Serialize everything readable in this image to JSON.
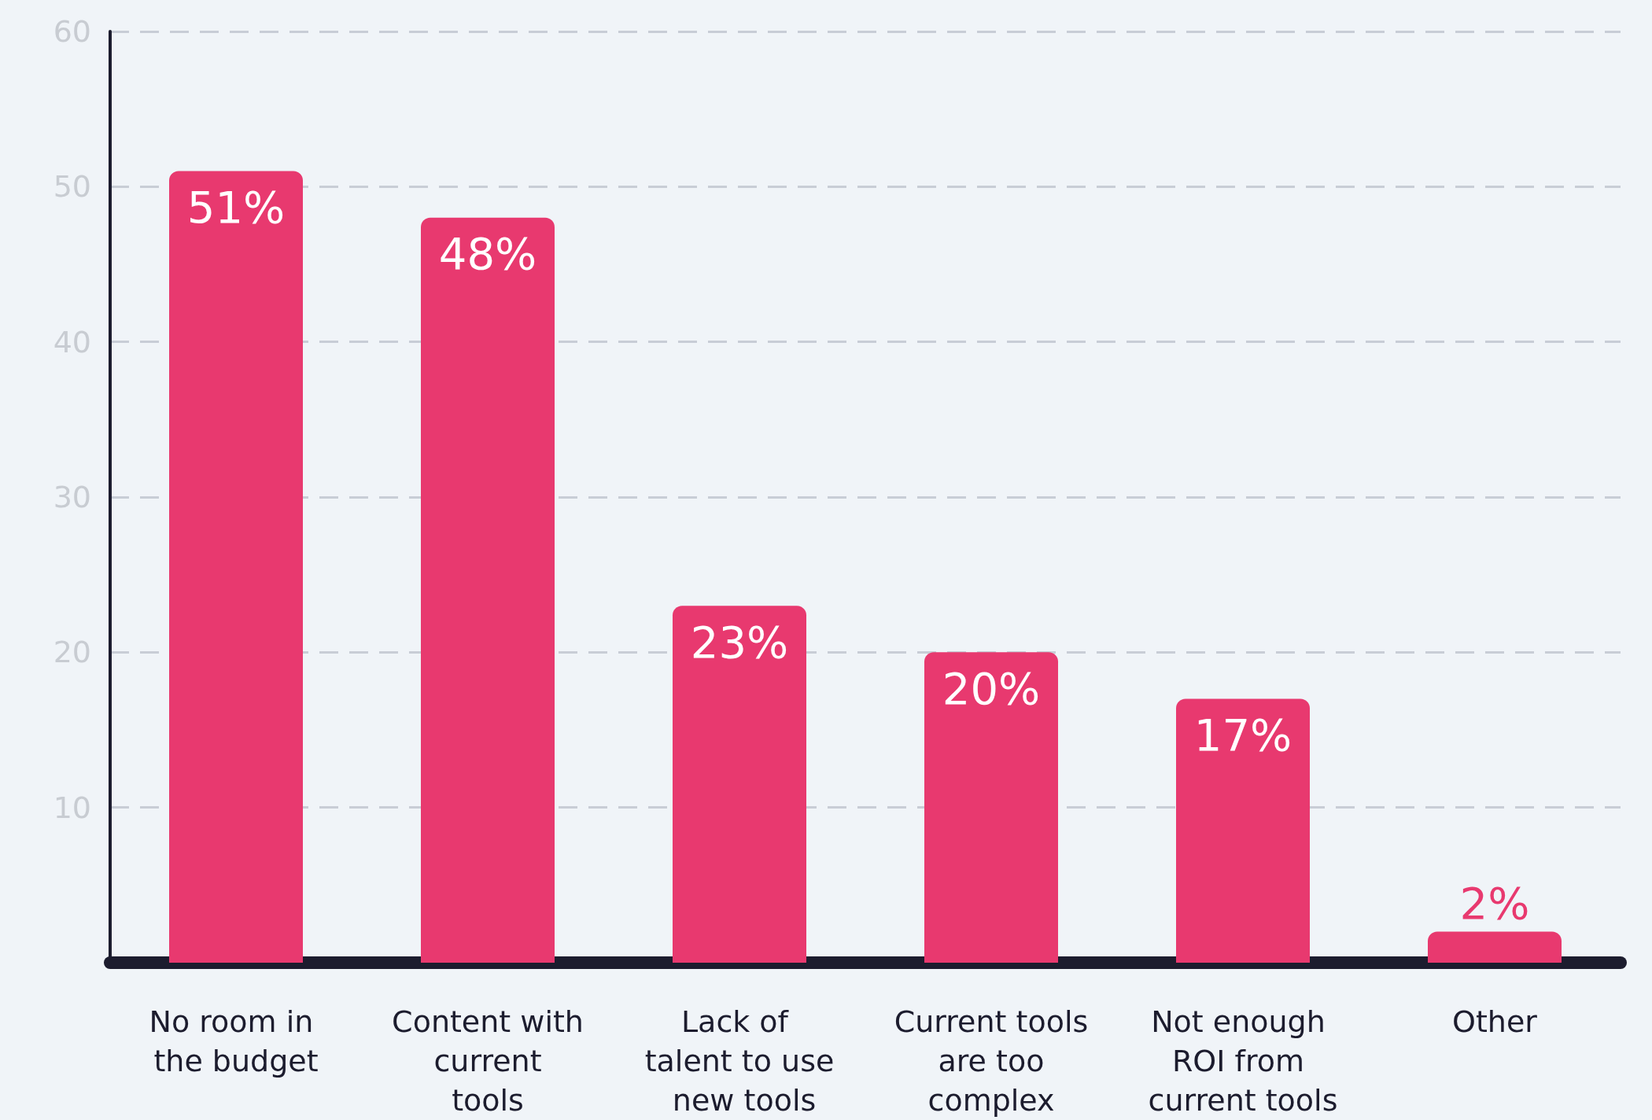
{
  "chart_data": {
    "type": "bar",
    "categories": [
      "No room in the budget",
      "Content with current tools",
      "Lack of talent to use new tools",
      "Current tools are too complex",
      "Not enough ROI from current tools",
      "Other"
    ],
    "values": [
      51,
      48,
      23,
      20,
      17,
      2
    ],
    "value_labels": [
      "51%",
      "48%",
      "23%",
      "20%",
      "17%",
      "2%"
    ],
    "color": "#e8396f",
    "ylim": [
      0,
      60
    ],
    "yticks": [
      10,
      20,
      30,
      40,
      50,
      60
    ],
    "grid": "y"
  }
}
